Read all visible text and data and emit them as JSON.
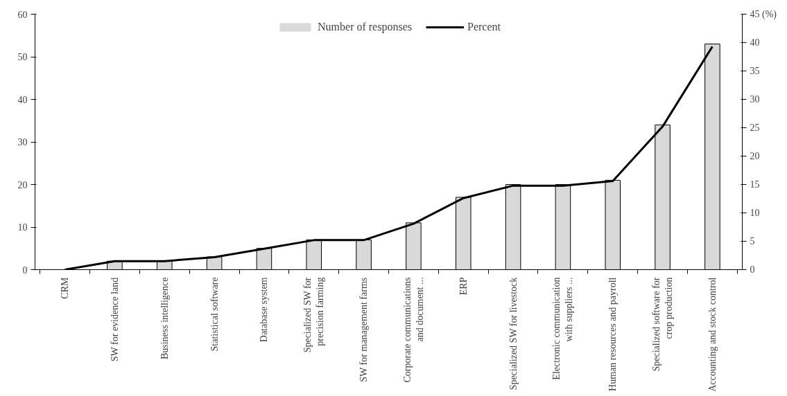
{
  "chart_data": {
    "type": "bar",
    "categories": [
      "CRM",
      "SW for evidence land",
      "Business intelligence",
      "Statistical software",
      "Database system",
      "Specialized SW for\nprecision farming",
      "SW for management farms",
      "Corporate communications\nand document ...",
      "ERP",
      "Specialized SW for livestock",
      "Electronic communication\nwith suppliers ...",
      "Human resources and payroll",
      "Specialized software for\ncrop production",
      "Accounting and stock control"
    ],
    "series": [
      {
        "name": "Number of responses",
        "color": "#d9d9d9",
        "values": [
          0,
          2,
          2,
          3,
          5,
          7,
          7,
          11,
          17,
          20,
          20,
          21,
          34,
          53
        ]
      },
      {
        "name": "Percent",
        "type": "line",
        "axis": "y2",
        "color": "#000000",
        "values": [
          0,
          1.5,
          1.5,
          2.2,
          3.7,
          5.2,
          5.2,
          8.1,
          12.6,
          14.8,
          14.8,
          15.6,
          25.2,
          39.3
        ]
      }
    ],
    "ylim": [
      0,
      60
    ],
    "yticks": [
      0,
      10,
      20,
      30,
      40,
      50,
      60
    ],
    "y2lim": [
      0,
      45
    ],
    "y2ticks": [
      0,
      5,
      10,
      15,
      20,
      25,
      30,
      35,
      40,
      {
        "value": 45,
        "label": "45 (%)"
      }
    ],
    "grid": false,
    "legend": "top",
    "marker": "none",
    "line_style": "solid"
  }
}
